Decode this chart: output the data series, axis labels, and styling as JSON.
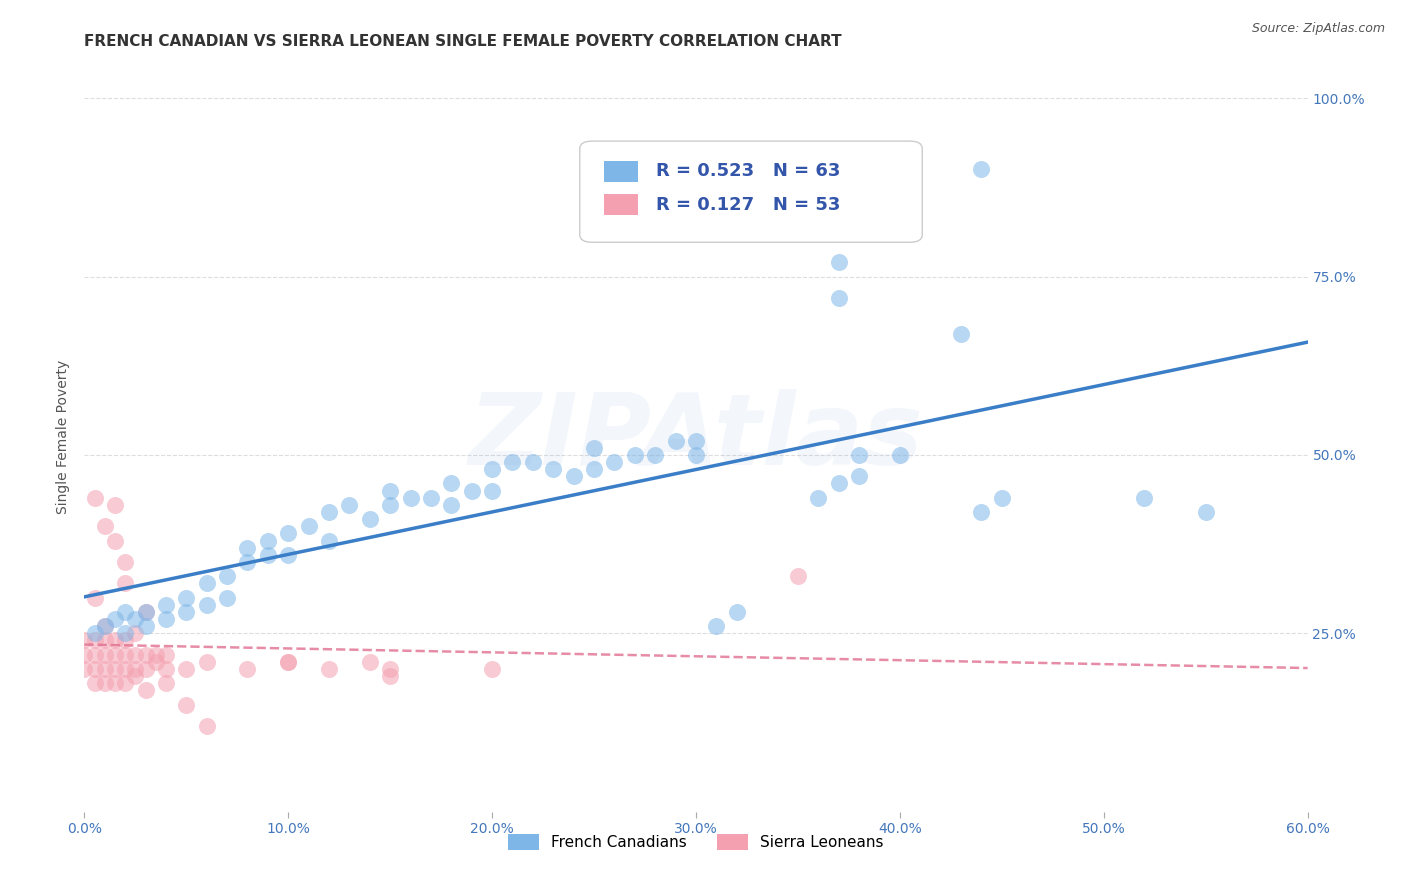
{
  "title": "FRENCH CANADIAN VS SIERRA LEONEAN SINGLE FEMALE POVERTY CORRELATION CHART",
  "source": "Source: ZipAtlas.com",
  "ylabel": "Single Female Poverty",
  "watermark": "ZIPAtlas",
  "xlim": [
    0.0,
    0.6
  ],
  "ylim": [
    0.0,
    1.05
  ],
  "xtick_vals": [
    0.0,
    0.1,
    0.2,
    0.3,
    0.4,
    0.5,
    0.6
  ],
  "xtick_labels": [
    "0.0%",
    "10.0%",
    "20.0%",
    "30.0%",
    "40.0%",
    "50.0%",
    "60.0%"
  ],
  "ytick_vals": [
    0.25,
    0.5,
    0.75,
    1.0
  ],
  "ytick_labels_right": [
    "25.0%",
    "50.0%",
    "75.0%",
    "100.0%"
  ],
  "blue_color": "#7EB6E8",
  "blue_line_color": "#3B7EC8",
  "pink_color": "#F4A0B0",
  "pink_line_color": "#E07090",
  "R_blue": 0.523,
  "N_blue": 63,
  "R_pink": 0.127,
  "N_pink": 53,
  "fc_x": [
    0.005,
    0.01,
    0.015,
    0.02,
    0.02,
    0.025,
    0.03,
    0.03,
    0.04,
    0.04,
    0.05,
    0.05,
    0.06,
    0.06,
    0.07,
    0.07,
    0.08,
    0.08,
    0.09,
    0.09,
    0.1,
    0.1,
    0.11,
    0.12,
    0.12,
    0.13,
    0.14,
    0.15,
    0.15,
    0.16,
    0.17,
    0.18,
    0.18,
    0.19,
    0.2,
    0.2,
    0.21,
    0.22,
    0.23,
    0.24,
    0.25,
    0.25,
    0.26,
    0.27,
    0.28,
    0.29,
    0.3,
    0.3,
    0.31,
    0.32,
    0.36,
    0.37,
    0.38,
    0.38,
    0.4,
    0.43,
    0.44,
    0.45,
    0.52,
    0.55,
    0.37,
    0.37,
    0.44
  ],
  "fc_y": [
    0.25,
    0.26,
    0.27,
    0.25,
    0.28,
    0.27,
    0.26,
    0.28,
    0.27,
    0.29,
    0.28,
    0.3,
    0.29,
    0.32,
    0.3,
    0.33,
    0.35,
    0.37,
    0.36,
    0.38,
    0.36,
    0.39,
    0.4,
    0.38,
    0.42,
    0.43,
    0.41,
    0.43,
    0.45,
    0.44,
    0.44,
    0.43,
    0.46,
    0.45,
    0.45,
    0.48,
    0.49,
    0.49,
    0.48,
    0.47,
    0.48,
    0.51,
    0.49,
    0.5,
    0.5,
    0.52,
    0.5,
    0.52,
    0.26,
    0.28,
    0.44,
    0.46,
    0.47,
    0.5,
    0.5,
    0.67,
    0.42,
    0.44,
    0.44,
    0.42,
    0.77,
    0.72,
    0.9
  ],
  "sl_x": [
    0.0,
    0.0,
    0.0,
    0.005,
    0.005,
    0.005,
    0.005,
    0.01,
    0.01,
    0.01,
    0.01,
    0.01,
    0.015,
    0.015,
    0.015,
    0.015,
    0.02,
    0.02,
    0.02,
    0.02,
    0.025,
    0.025,
    0.025,
    0.03,
    0.03,
    0.03,
    0.035,
    0.04,
    0.04,
    0.05,
    0.06,
    0.08,
    0.1,
    0.12,
    0.14,
    0.15,
    0.005,
    0.005,
    0.01,
    0.015,
    0.015,
    0.02,
    0.02,
    0.025,
    0.03,
    0.035,
    0.04,
    0.05,
    0.06,
    0.1,
    0.15,
    0.2,
    0.35
  ],
  "sl_y": [
    0.2,
    0.22,
    0.24,
    0.18,
    0.2,
    0.22,
    0.24,
    0.18,
    0.2,
    0.22,
    0.24,
    0.26,
    0.18,
    0.2,
    0.22,
    0.24,
    0.18,
    0.2,
    0.22,
    0.24,
    0.2,
    0.22,
    0.19,
    0.2,
    0.22,
    0.17,
    0.21,
    0.2,
    0.22,
    0.2,
    0.21,
    0.2,
    0.21,
    0.2,
    0.21,
    0.2,
    0.3,
    0.44,
    0.4,
    0.38,
    0.43,
    0.32,
    0.35,
    0.25,
    0.28,
    0.22,
    0.18,
    0.15,
    0.12,
    0.21,
    0.19,
    0.2,
    0.33
  ],
  "grid_color": "#DDDDDD",
  "background_color": "#FFFFFF",
  "title_fontsize": 11,
  "tick_fontsize": 10,
  "legend_fontsize": 12
}
